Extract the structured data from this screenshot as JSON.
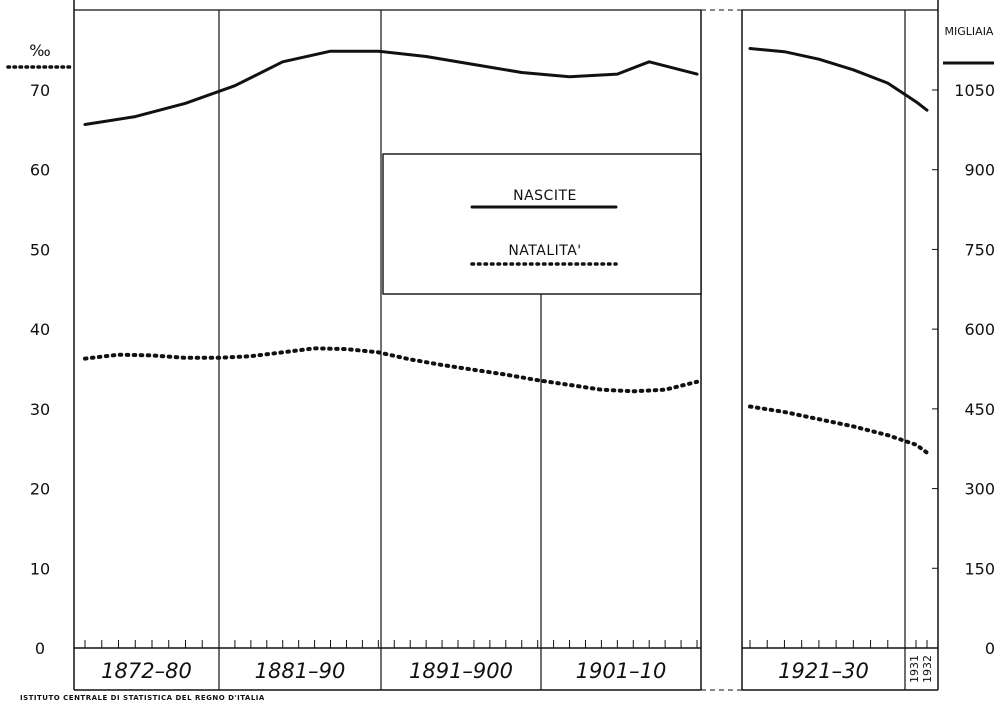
{
  "chart_data": {
    "type": "line",
    "title": "",
    "left_axis": {
      "unit": "‰",
      "ticks": [
        0,
        10,
        20,
        30,
        40,
        50,
        60,
        70
      ],
      "range": [
        0,
        80
      ]
    },
    "right_axis": {
      "unit": "MIGLIAIA",
      "ticks": [
        0,
        150,
        300,
        450,
        600,
        750,
        900,
        1050
      ],
      "range": [
        0,
        1200
      ]
    },
    "periods": [
      "1872-80",
      "1881-90",
      "1891-900",
      "1901-10",
      "1921-30",
      "1931 1932"
    ],
    "series": [
      {
        "name": "NASCITE",
        "style": "solid",
        "axis": "right",
        "segments": [
          {
            "x": [
              1872,
              1875,
              1878,
              1881,
              1884,
              1887,
              1890,
              1893,
              1896,
              1899,
              1902,
              1905,
              1907,
              1910
            ],
            "y": [
              985,
              1000,
              1025,
              1058,
              1103,
              1123,
              1123,
              1113,
              1098,
              1083,
              1075,
              1080,
              1103,
              1080
            ]
          },
          {
            "x": [
              1921,
              1923,
              1925,
              1927,
              1929,
              1931,
              1932
            ],
            "y": [
              1128,
              1122,
              1108,
              1088,
              1063,
              1028,
              1012
            ]
          }
        ]
      },
      {
        "name": "NATALITA'",
        "style": "dotted",
        "axis": "left",
        "segments": [
          {
            "x": [
              1872,
              1874,
              1876,
              1878,
              1880,
              1882,
              1884,
              1886,
              1888,
              1890,
              1892,
              1894,
              1896,
              1898,
              1900,
              1902,
              1904,
              1906,
              1908,
              1910
            ],
            "y": [
              36.3,
              36.8,
              36.7,
              36.4,
              36.4,
              36.6,
              37.1,
              37.6,
              37.5,
              37.1,
              36.2,
              35.5,
              34.9,
              34.3,
              33.6,
              33.0,
              32.4,
              32.2,
              32.4,
              33.4
            ]
          },
          {
            "x": [
              1921,
              1923,
              1925,
              1927,
              1929,
              1931,
              1932
            ],
            "y": [
              30.3,
              29.6,
              28.7,
              27.8,
              26.7,
              25.5,
              24.5
            ]
          }
        ]
      }
    ],
    "legend": {
      "position": "center",
      "entries": [
        {
          "label": "NASCITE",
          "style": "solid"
        },
        {
          "label": "NATALITA'",
          "style": "dotted"
        }
      ]
    },
    "source": "ISTITUTO  CENTRALE DI STATISTICA  DEL REGNO  D'ITALIA",
    "grid": false
  }
}
